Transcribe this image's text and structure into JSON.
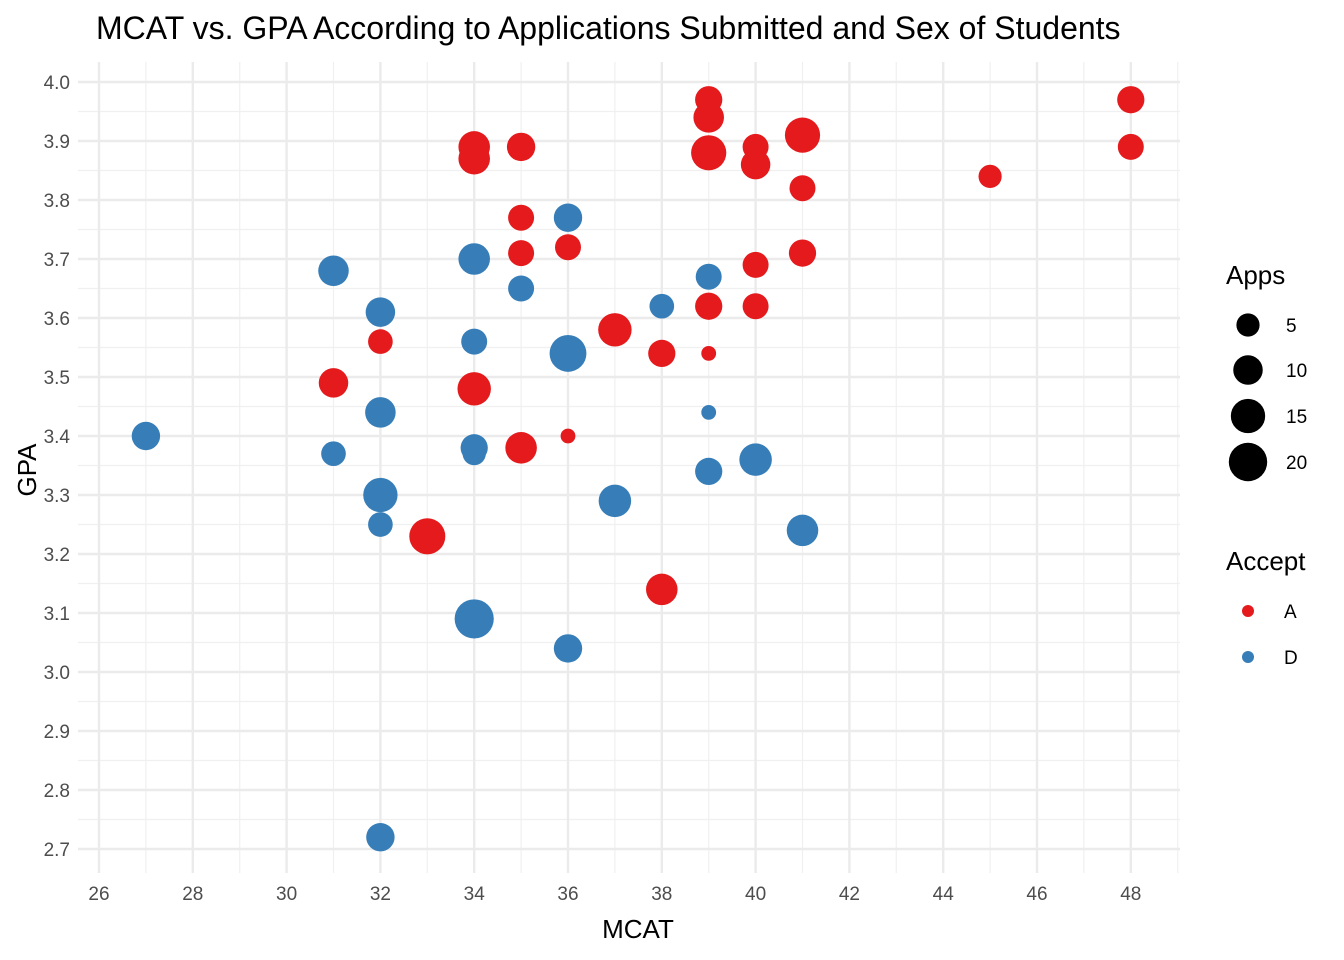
{
  "chart_data": {
    "type": "scatter",
    "title": "MCAT vs. GPA According to Applications Submitted and Sex of Students",
    "xlabel": "MCAT",
    "ylabel": "GPA",
    "xlim": [
      26,
      49
    ],
    "ylim": [
      2.67,
      4.03
    ],
    "x_ticks": [
      26,
      28,
      30,
      32,
      34,
      36,
      38,
      40,
      42,
      44,
      46,
      48
    ],
    "y_ticks": [
      2.7,
      2.8,
      2.9,
      3.0,
      3.1,
      3.2,
      3.3,
      3.4,
      3.5,
      3.6,
      3.7,
      3.8,
      3.9,
      4.0
    ],
    "grid": true,
    "legend_placement": "right",
    "size_legend": {
      "title": "Apps",
      "values": [
        5,
        10,
        15,
        20
      ]
    },
    "color_legend": {
      "title": "Accept",
      "entries": [
        {
          "label": "A",
          "color": "#E41A1C"
        },
        {
          "label": "D",
          "color": "#377EB8"
        }
      ]
    },
    "series": [
      {
        "name": "A",
        "color": "#E41A1C",
        "points": [
          {
            "x": 48,
            "y": 3.97,
            "apps": 8
          },
          {
            "x": 48,
            "y": 3.89,
            "apps": 7
          },
          {
            "x": 45,
            "y": 3.84,
            "apps": 5
          },
          {
            "x": 41,
            "y": 3.91,
            "apps": 16
          },
          {
            "x": 41,
            "y": 3.82,
            "apps": 7
          },
          {
            "x": 41,
            "y": 3.71,
            "apps": 8
          },
          {
            "x": 40,
            "y": 3.89,
            "apps": 7
          },
          {
            "x": 40,
            "y": 3.86,
            "apps": 10
          },
          {
            "x": 40,
            "y": 3.69,
            "apps": 7
          },
          {
            "x": 40,
            "y": 3.62,
            "apps": 7
          },
          {
            "x": 39,
            "y": 3.97,
            "apps": 8
          },
          {
            "x": 39,
            "y": 3.94,
            "apps": 11
          },
          {
            "x": 39,
            "y": 3.88,
            "apps": 16
          },
          {
            "x": 39,
            "y": 3.62,
            "apps": 8
          },
          {
            "x": 39,
            "y": 3.54,
            "apps": 1
          },
          {
            "x": 38,
            "y": 3.54,
            "apps": 8
          },
          {
            "x": 38,
            "y": 3.14,
            "apps": 12
          },
          {
            "x": 37,
            "y": 3.58,
            "apps": 14
          },
          {
            "x": 36,
            "y": 3.72,
            "apps": 7
          },
          {
            "x": 36,
            "y": 3.4,
            "apps": 1
          },
          {
            "x": 35,
            "y": 3.89,
            "apps": 9
          },
          {
            "x": 35,
            "y": 3.77,
            "apps": 7
          },
          {
            "x": 35,
            "y": 3.71,
            "apps": 7
          },
          {
            "x": 35,
            "y": 3.38,
            "apps": 12
          },
          {
            "x": 34,
            "y": 3.89,
            "apps": 12
          },
          {
            "x": 34,
            "y": 3.87,
            "apps": 12
          },
          {
            "x": 34,
            "y": 3.48,
            "apps": 14
          },
          {
            "x": 33,
            "y": 3.23,
            "apps": 17
          },
          {
            "x": 32,
            "y": 3.56,
            "apps": 6
          },
          {
            "x": 31,
            "y": 3.49,
            "apps": 10
          }
        ]
      },
      {
        "name": "D",
        "color": "#377EB8",
        "points": [
          {
            "x": 27,
            "y": 3.4,
            "apps": 9
          },
          {
            "x": 31,
            "y": 3.68,
            "apps": 11
          },
          {
            "x": 31,
            "y": 3.37,
            "apps": 6
          },
          {
            "x": 32,
            "y": 3.61,
            "apps": 10
          },
          {
            "x": 32,
            "y": 3.44,
            "apps": 11
          },
          {
            "x": 32,
            "y": 3.3,
            "apps": 15
          },
          {
            "x": 32,
            "y": 3.25,
            "apps": 6
          },
          {
            "x": 32,
            "y": 2.72,
            "apps": 9
          },
          {
            "x": 34,
            "y": 3.7,
            "apps": 12
          },
          {
            "x": 34,
            "y": 3.56,
            "apps": 7
          },
          {
            "x": 34,
            "y": 3.38,
            "apps": 8
          },
          {
            "x": 34,
            "y": 3.37,
            "apps": 5
          },
          {
            "x": 34,
            "y": 3.09,
            "apps": 21
          },
          {
            "x": 35,
            "y": 3.65,
            "apps": 7
          },
          {
            "x": 36,
            "y": 3.77,
            "apps": 9
          },
          {
            "x": 36,
            "y": 3.54,
            "apps": 18
          },
          {
            "x": 36,
            "y": 3.04,
            "apps": 9
          },
          {
            "x": 37,
            "y": 3.29,
            "apps": 13
          },
          {
            "x": 38,
            "y": 3.62,
            "apps": 6
          },
          {
            "x": 39,
            "y": 3.67,
            "apps": 7
          },
          {
            "x": 39,
            "y": 3.44,
            "apps": 1
          },
          {
            "x": 39,
            "y": 3.34,
            "apps": 8
          },
          {
            "x": 40,
            "y": 3.36,
            "apps": 13
          },
          {
            "x": 41,
            "y": 3.24,
            "apps": 12
          }
        ]
      }
    ]
  }
}
